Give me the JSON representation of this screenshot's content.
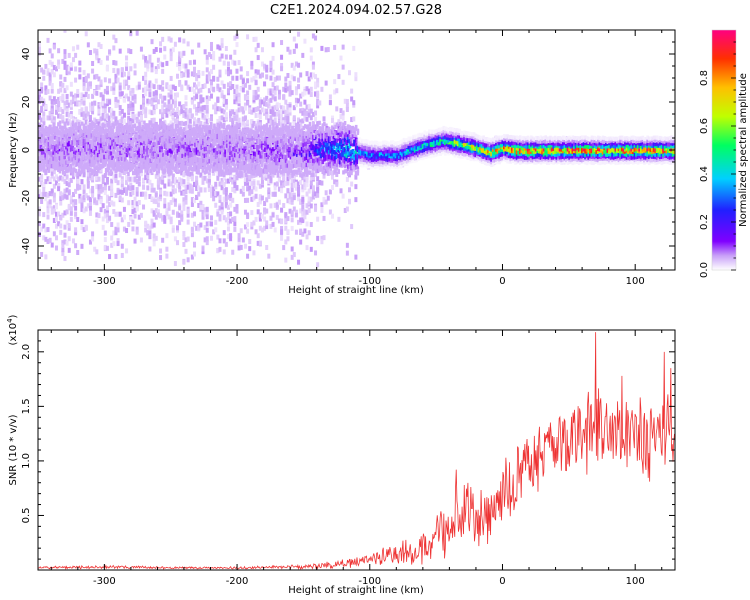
{
  "title": "C2E1.2024.094.02.57.G28",
  "chart_data": [
    {
      "type": "heatmap",
      "title": "C2E1.2024.094.02.57.G28",
      "xlabel": "Height of straight line (km)",
      "ylabel": "Frequency (Hz)",
      "xlim": [
        -350,
        130
      ],
      "ylim": [
        -50,
        50
      ],
      "xticks": [
        -300,
        -200,
        -100,
        0,
        100
      ],
      "yticks": [
        -40,
        -20,
        0,
        20,
        40
      ],
      "colorbar": {
        "label": "Normalized spectral amplitude",
        "range": [
          0.0,
          1.0
        ],
        "ticks": [
          "0.0",
          "0.2",
          "0.4",
          "0.6",
          "0.8"
        ],
        "colormap": [
          "#ffffff",
          "#c8a0f8",
          "#7f00ff",
          "#2020ff",
          "#00d0ff",
          "#00ff60",
          "#c0ff00",
          "#ffc000",
          "#ff3000",
          "#ff0080"
        ]
      },
      "ridge": {
        "description_x_km": [
          -350,
          -300,
          -250,
          -200,
          -150,
          -140,
          -120,
          -100,
          -80,
          -60,
          -45,
          -35,
          -20,
          -10,
          0,
          10,
          50,
          100,
          130
        ],
        "center_hz": [
          1,
          1,
          1,
          0,
          0,
          1,
          1,
          -2,
          -2,
          2,
          4,
          3,
          1,
          -1,
          1,
          0,
          0,
          0,
          0
        ],
        "amplitude": [
          0.15,
          0.15,
          0.15,
          0.15,
          0.2,
          0.35,
          0.45,
          0.45,
          0.5,
          0.55,
          0.6,
          0.7,
          0.75,
          0.8,
          0.85,
          0.9,
          0.92,
          0.92,
          0.92
        ],
        "noise_extent_x_km": [
          -350,
          -110
        ]
      }
    },
    {
      "type": "line",
      "xlabel": "Height of straight line (km)",
      "ylabel": "SNR (10 * v/v)",
      "y_multiplier": "(x10",
      "y_multiplier_exp": "4",
      "y_multiplier_close": ")",
      "xlim": [
        -350,
        130
      ],
      "ylim": [
        0,
        2.2
      ],
      "xticks": [
        -300,
        -200,
        -100,
        0,
        100
      ],
      "yticks": [
        0.5,
        1.0,
        1.5,
        2.0
      ],
      "color": "#ee3333",
      "series": [
        {
          "x": [
            -350,
            -300,
            -250,
            -200,
            -150,
            -120,
            -100,
            -80,
            -60,
            -45,
            -35,
            -25,
            -15,
            -5,
            0,
            10,
            20,
            30,
            40,
            50,
            60,
            70,
            80,
            90,
            100,
            110,
            120,
            130
          ],
          "y": [
            0.02,
            0.03,
            0.02,
            0.02,
            0.03,
            0.06,
            0.1,
            0.15,
            0.2,
            0.35,
            0.55,
            0.6,
            0.45,
            0.55,
            0.7,
            0.85,
            1.0,
            1.05,
            1.15,
            1.2,
            1.25,
            1.3,
            1.25,
            1.2,
            1.25,
            1.15,
            1.3,
            1.4
          ],
          "spread": [
            0.01,
            0.015,
            0.01,
            0.01,
            0.02,
            0.04,
            0.06,
            0.1,
            0.15,
            0.25,
            0.3,
            0.3,
            0.3,
            0.3,
            0.3,
            0.3,
            0.3,
            0.3,
            0.3,
            0.35,
            0.35,
            0.4,
            0.35,
            0.35,
            0.35,
            0.35,
            0.35,
            0.35
          ],
          "peaks": [
            [
              70,
              2.18
            ],
            [
              122,
              2.0
            ],
            [
              -35,
              0.92
            ],
            [
              90,
              1.78
            ],
            [
              127,
              1.85
            ]
          ]
        }
      ]
    }
  ]
}
